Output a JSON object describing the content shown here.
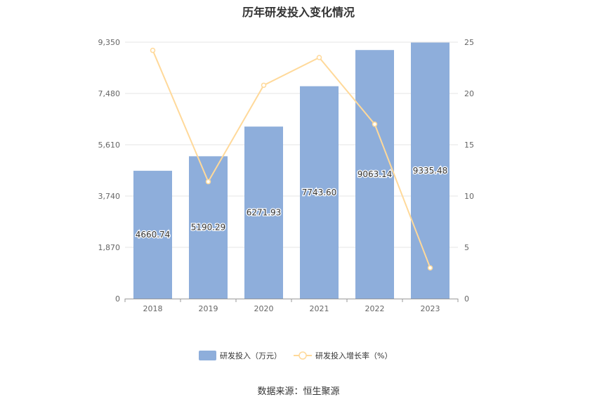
{
  "title": "历年研发投入变化情况",
  "source": "数据来源：恒生聚源",
  "colors": {
    "bar": "#8eaedb",
    "line": "#ffd99a",
    "grid": "#e6e6e6",
    "axis_text": "#666666"
  },
  "legend": {
    "bar_label": "研发投入（万元）",
    "line_label": "研发投入增长率（%）"
  },
  "chart_data": {
    "type": "bar",
    "title": "历年研发投入变化情况",
    "categories": [
      "2018",
      "2019",
      "2020",
      "2021",
      "2022",
      "2023"
    ],
    "y_left": {
      "ticks": [
        "0",
        "1,870",
        "3,740",
        "5,610",
        "7,480",
        "9,350"
      ],
      "ylim": [
        0,
        9350
      ]
    },
    "y_right": {
      "ticks": [
        "0",
        "5",
        "10",
        "15",
        "20",
        "25"
      ],
      "ylim": [
        0,
        25
      ]
    },
    "series": [
      {
        "name": "研发投入（万元）",
        "type": "bar",
        "axis": "left",
        "values": [
          4660.74,
          5190.29,
          6271.93,
          7743.6,
          9063.14,
          9335.48
        ],
        "labels": [
          "4660.74",
          "5190.29",
          "6271.93",
          "7743.60",
          "9063.14",
          "9335.48"
        ]
      },
      {
        "name": "研发投入增长率（%）",
        "type": "line",
        "axis": "right",
        "values": [
          24.2,
          11.4,
          20.8,
          23.5,
          17.0,
          3.0
        ]
      }
    ],
    "grid": true,
    "legend_position": "bottom"
  }
}
